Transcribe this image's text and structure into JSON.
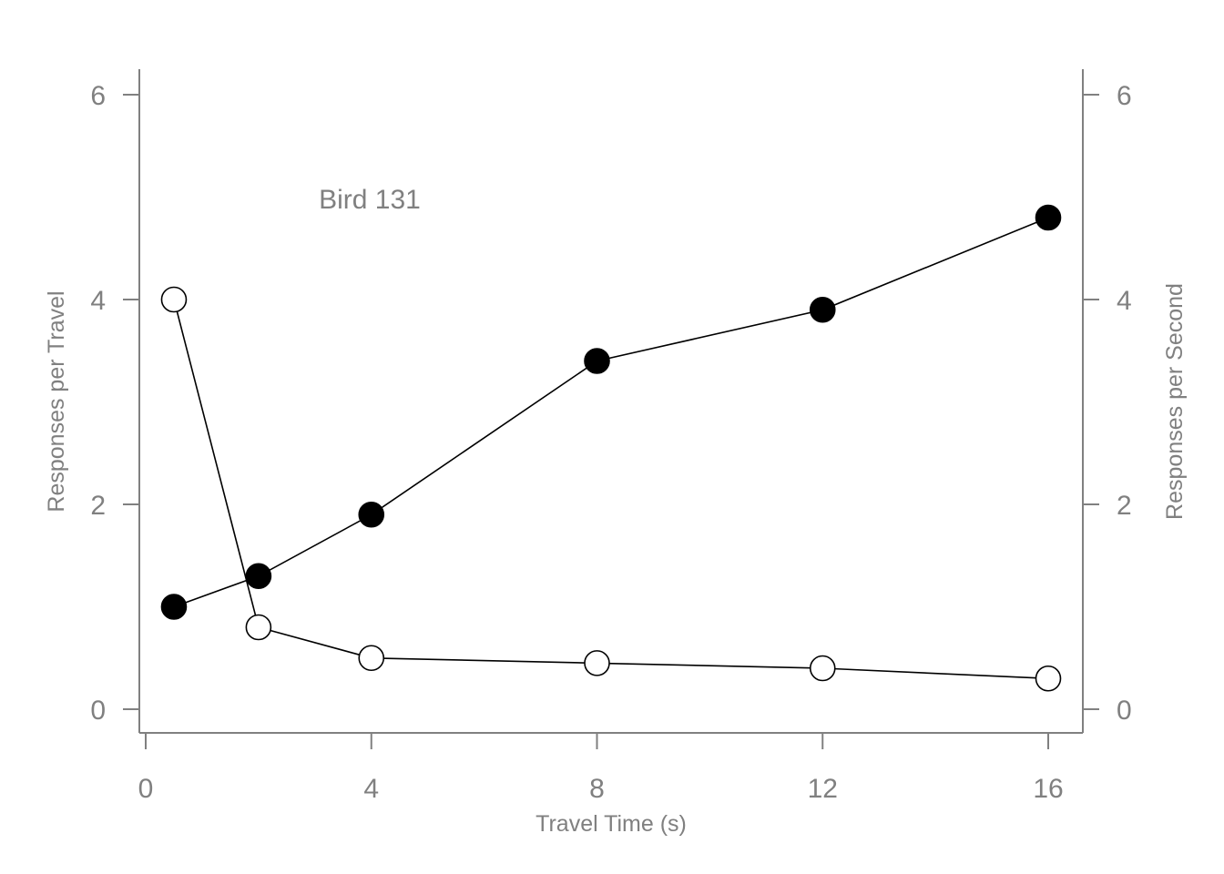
{
  "chart_data": {
    "type": "line",
    "xlabel": "Travel Time (s)",
    "ylabel_left": "Responses per Travel",
    "ylabel_right": "Responses per Second",
    "annotation": "Bird 131",
    "xlim": [
      0,
      16
    ],
    "ylim": [
      0,
      6
    ],
    "xticks": [
      0,
      4,
      8,
      12,
      16
    ],
    "yticks": [
      0,
      2,
      4,
      6
    ],
    "grid": false,
    "legend": "none",
    "series": [
      {
        "marker": "filled-circle",
        "color": "#000000",
        "axis": "left",
        "x": [
          0.5,
          2,
          4,
          8,
          12,
          16
        ],
        "y": [
          1.0,
          1.3,
          1.9,
          3.4,
          3.9,
          4.8
        ]
      },
      {
        "marker": "open-circle",
        "color": "#000000",
        "axis": "right",
        "x": [
          0.5,
          2,
          4,
          8,
          12,
          16
        ],
        "y": [
          4.0,
          0.8,
          0.5,
          0.45,
          0.4,
          0.3
        ]
      }
    ]
  }
}
